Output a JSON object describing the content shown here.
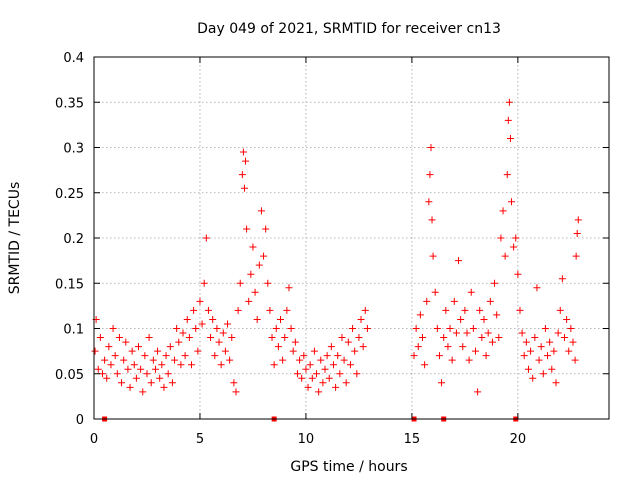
{
  "chart_data": {
    "type": "scatter",
    "title": "Day 049 of 2021, SRMTID for receiver cn13",
    "xlabel": "GPS time / hours",
    "ylabel": "SRMTID / TECUs",
    "xlim": [
      0,
      24.3
    ],
    "ylim": [
      0,
      0.4
    ],
    "grid": true,
    "marker": "+",
    "color": "#ff0000",
    "xticks": [
      0,
      5,
      10,
      15,
      20
    ],
    "xtick_labels": [
      "0",
      "5",
      "10",
      "15",
      "20"
    ],
    "yticks": [
      0,
      0.05,
      0.1,
      0.15,
      0.2,
      0.25,
      0.3,
      0.35,
      0.4
    ],
    "ytick_labels": [
      "0",
      "0.05",
      "0.1",
      "0.15",
      "0.2",
      "0.25",
      "0.3",
      "0.35",
      "0.4"
    ],
    "baseline_markers_x": [
      0.5,
      8.5,
      15.1,
      16.5,
      19.9
    ],
    "series": [
      {
        "name": "SRMTID",
        "points": [
          [
            0.05,
            0.075
          ],
          [
            0.1,
            0.11
          ],
          [
            0.2,
            0.055
          ],
          [
            0.3,
            0.09
          ],
          [
            0.4,
            0.05
          ],
          [
            0.5,
            0.065
          ],
          [
            0.6,
            0.045
          ],
          [
            0.7,
            0.08
          ],
          [
            0.8,
            0.06
          ],
          [
            0.9,
            0.1
          ],
          [
            1.0,
            0.07
          ],
          [
            1.1,
            0.05
          ],
          [
            1.2,
            0.09
          ],
          [
            1.3,
            0.04
          ],
          [
            1.4,
            0.065
          ],
          [
            1.5,
            0.085
          ],
          [
            1.6,
            0.055
          ],
          [
            1.7,
            0.035
          ],
          [
            1.8,
            0.075
          ],
          [
            1.9,
            0.06
          ],
          [
            2.0,
            0.045
          ],
          [
            2.1,
            0.08
          ],
          [
            2.2,
            0.055
          ],
          [
            2.3,
            0.03
          ],
          [
            2.4,
            0.07
          ],
          [
            2.5,
            0.05
          ],
          [
            2.6,
            0.09
          ],
          [
            2.7,
            0.04
          ],
          [
            2.8,
            0.065
          ],
          [
            2.9,
            0.055
          ],
          [
            3.0,
            0.075
          ],
          [
            3.1,
            0.045
          ],
          [
            3.2,
            0.06
          ],
          [
            3.3,
            0.035
          ],
          [
            3.4,
            0.07
          ],
          [
            3.5,
            0.05
          ],
          [
            3.6,
            0.08
          ],
          [
            3.7,
            0.04
          ],
          [
            3.8,
            0.065
          ],
          [
            3.9,
            0.1
          ],
          [
            4.0,
            0.085
          ],
          [
            4.1,
            0.06
          ],
          [
            4.2,
            0.095
          ],
          [
            4.3,
            0.07
          ],
          [
            4.4,
            0.11
          ],
          [
            4.5,
            0.09
          ],
          [
            4.6,
            0.06
          ],
          [
            4.7,
            0.12
          ],
          [
            4.8,
            0.1
          ],
          [
            4.9,
            0.075
          ],
          [
            5.0,
            0.13
          ],
          [
            5.1,
            0.105
          ],
          [
            5.2,
            0.15
          ],
          [
            5.3,
            0.2
          ],
          [
            5.4,
            0.12
          ],
          [
            5.5,
            0.09
          ],
          [
            5.6,
            0.11
          ],
          [
            5.7,
            0.07
          ],
          [
            5.8,
            0.1
          ],
          [
            5.9,
            0.085
          ],
          [
            6.0,
            0.06
          ],
          [
            6.1,
            0.095
          ],
          [
            6.2,
            0.075
          ],
          [
            6.3,
            0.105
          ],
          [
            6.4,
            0.065
          ],
          [
            6.5,
            0.09
          ],
          [
            6.6,
            0.04
          ],
          [
            6.7,
            0.03
          ],
          [
            6.8,
            0.12
          ],
          [
            6.9,
            0.15
          ],
          [
            7.0,
            0.27
          ],
          [
            7.05,
            0.295
          ],
          [
            7.1,
            0.255
          ],
          [
            7.15,
            0.285
          ],
          [
            7.2,
            0.21
          ],
          [
            7.3,
            0.13
          ],
          [
            7.4,
            0.16
          ],
          [
            7.5,
            0.19
          ],
          [
            7.6,
            0.14
          ],
          [
            7.7,
            0.11
          ],
          [
            7.8,
            0.17
          ],
          [
            7.9,
            0.23
          ],
          [
            8.0,
            0.18
          ],
          [
            8.1,
            0.21
          ],
          [
            8.2,
            0.15
          ],
          [
            8.3,
            0.12
          ],
          [
            8.4,
            0.09
          ],
          [
            8.5,
            0.06
          ],
          [
            8.6,
            0.1
          ],
          [
            8.7,
            0.08
          ],
          [
            8.8,
            0.11
          ],
          [
            8.9,
            0.065
          ],
          [
            9.0,
            0.09
          ],
          [
            9.1,
            0.12
          ],
          [
            9.2,
            0.145
          ],
          [
            9.3,
            0.1
          ],
          [
            9.4,
            0.075
          ],
          [
            9.5,
            0.085
          ],
          [
            9.6,
            0.05
          ],
          [
            9.7,
            0.065
          ],
          [
            9.8,
            0.045
          ],
          [
            9.9,
            0.07
          ],
          [
            10.0,
            0.055
          ],
          [
            10.1,
            0.035
          ],
          [
            10.2,
            0.06
          ],
          [
            10.3,
            0.045
          ],
          [
            10.4,
            0.075
          ],
          [
            10.5,
            0.05
          ],
          [
            10.6,
            0.03
          ],
          [
            10.7,
            0.065
          ],
          [
            10.8,
            0.04
          ],
          [
            10.9,
            0.055
          ],
          [
            11.0,
            0.07
          ],
          [
            11.1,
            0.045
          ],
          [
            11.2,
            0.08
          ],
          [
            11.3,
            0.06
          ],
          [
            11.4,
            0.035
          ],
          [
            11.5,
            0.07
          ],
          [
            11.6,
            0.05
          ],
          [
            11.7,
            0.09
          ],
          [
            11.8,
            0.065
          ],
          [
            11.9,
            0.04
          ],
          [
            12.0,
            0.085
          ],
          [
            12.1,
            0.06
          ],
          [
            12.2,
            0.1
          ],
          [
            12.3,
            0.075
          ],
          [
            12.4,
            0.05
          ],
          [
            12.5,
            0.09
          ],
          [
            12.6,
            0.11
          ],
          [
            12.7,
            0.08
          ],
          [
            12.8,
            0.12
          ],
          [
            12.9,
            0.1
          ],
          [
            15.1,
            0.07
          ],
          [
            15.2,
            0.1
          ],
          [
            15.3,
            0.08
          ],
          [
            15.4,
            0.115
          ],
          [
            15.5,
            0.09
          ],
          [
            15.6,
            0.06
          ],
          [
            15.7,
            0.13
          ],
          [
            15.8,
            0.24
          ],
          [
            15.85,
            0.27
          ],
          [
            15.9,
            0.3
          ],
          [
            15.95,
            0.22
          ],
          [
            16.0,
            0.18
          ],
          [
            16.1,
            0.14
          ],
          [
            16.2,
            0.1
          ],
          [
            16.3,
            0.07
          ],
          [
            16.4,
            0.04
          ],
          [
            16.5,
            0.09
          ],
          [
            16.6,
            0.12
          ],
          [
            16.7,
            0.08
          ],
          [
            16.8,
            0.1
          ],
          [
            16.9,
            0.065
          ],
          [
            17.0,
            0.13
          ],
          [
            17.1,
            0.095
          ],
          [
            17.2,
            0.175
          ],
          [
            17.3,
            0.11
          ],
          [
            17.4,
            0.08
          ],
          [
            17.5,
            0.12
          ],
          [
            17.6,
            0.095
          ],
          [
            17.7,
            0.065
          ],
          [
            17.8,
            0.14
          ],
          [
            17.9,
            0.1
          ],
          [
            18.0,
            0.075
          ],
          [
            18.1,
            0.03
          ],
          [
            18.2,
            0.12
          ],
          [
            18.3,
            0.09
          ],
          [
            18.4,
            0.11
          ],
          [
            18.5,
            0.07
          ],
          [
            18.6,
            0.095
          ],
          [
            18.7,
            0.13
          ],
          [
            18.8,
            0.085
          ],
          [
            18.9,
            0.15
          ],
          [
            19.0,
            0.115
          ],
          [
            19.1,
            0.09
          ],
          [
            19.2,
            0.2
          ],
          [
            19.3,
            0.23
          ],
          [
            19.4,
            0.18
          ],
          [
            19.5,
            0.27
          ],
          [
            19.55,
            0.33
          ],
          [
            19.6,
            0.35
          ],
          [
            19.65,
            0.31
          ],
          [
            19.7,
            0.24
          ],
          [
            19.8,
            0.19
          ],
          [
            19.9,
            0.2
          ],
          [
            20.0,
            0.16
          ],
          [
            20.1,
            0.12
          ],
          [
            20.2,
            0.095
          ],
          [
            20.3,
            0.07
          ],
          [
            20.4,
            0.085
          ],
          [
            20.5,
            0.055
          ],
          [
            20.6,
            0.075
          ],
          [
            20.7,
            0.045
          ],
          [
            20.8,
            0.09
          ],
          [
            20.9,
            0.145
          ],
          [
            21.0,
            0.065
          ],
          [
            21.1,
            0.08
          ],
          [
            21.2,
            0.05
          ],
          [
            21.3,
            0.1
          ],
          [
            21.4,
            0.07
          ],
          [
            21.5,
            0.085
          ],
          [
            21.6,
            0.055
          ],
          [
            21.7,
            0.075
          ],
          [
            21.8,
            0.04
          ],
          [
            21.9,
            0.095
          ],
          [
            22.0,
            0.12
          ],
          [
            22.1,
            0.155
          ],
          [
            22.2,
            0.09
          ],
          [
            22.3,
            0.11
          ],
          [
            22.4,
            0.075
          ],
          [
            22.5,
            0.1
          ],
          [
            22.6,
            0.085
          ],
          [
            22.7,
            0.065
          ],
          [
            22.75,
            0.18
          ],
          [
            22.8,
            0.205
          ],
          [
            22.85,
            0.22
          ]
        ]
      }
    ]
  }
}
